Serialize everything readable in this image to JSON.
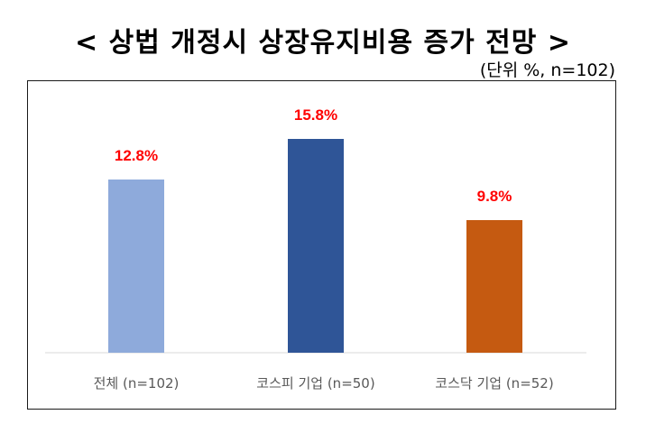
{
  "header": {
    "title": "< 상법 개정시 상장유지비용 증가 전망 >",
    "unit_note": "(단위 %, n=102)"
  },
  "chart_data": {
    "type": "bar",
    "categories": [
      "전체 (n=102)",
      "코스피 기업 (n=50)",
      "코스닥 기업 (n=52)"
    ],
    "values": [
      12.8,
      15.8,
      9.8
    ],
    "data_labels": [
      "12.8%",
      "15.8%",
      "9.8%"
    ],
    "colors": [
      "#8eaadb",
      "#2f5597",
      "#c55a11"
    ],
    "label_color": "#ff0000",
    "ylim": [
      0,
      20
    ],
    "grid": false,
    "legend": "none"
  }
}
